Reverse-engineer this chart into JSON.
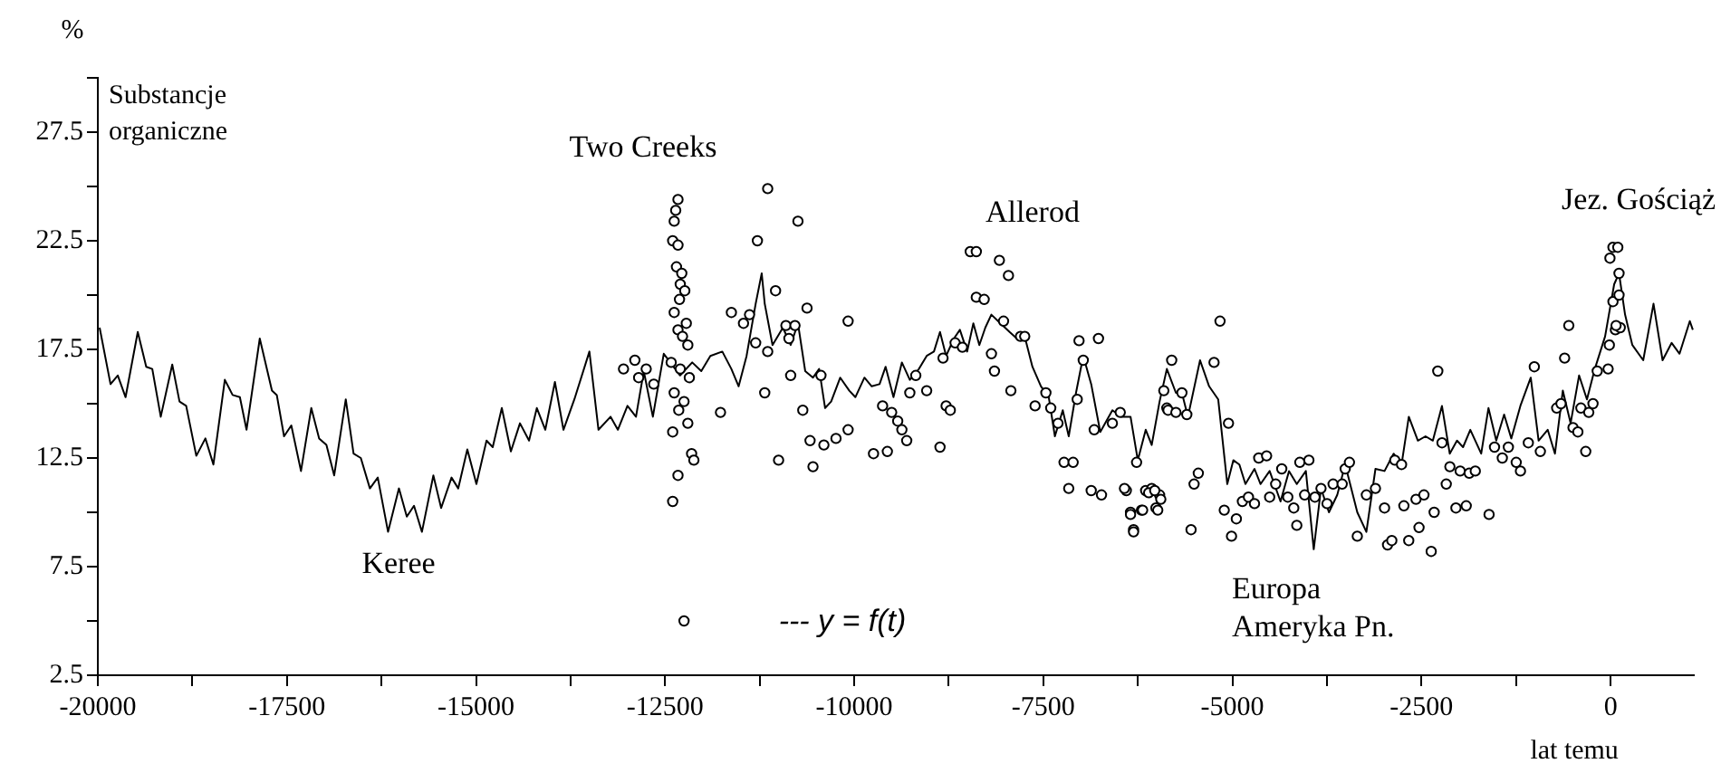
{
  "chart_data": {
    "type": "line",
    "title": "Substancje organiczne",
    "ylabel": "%",
    "xlabel": "lat temu",
    "xlim": [
      -20000,
      1100
    ],
    "xticks": [
      -20000,
      {
        "value": -18750,
        "label": null
      },
      -17500,
      {
        "value": -16250,
        "label": null
      },
      -15000,
      {
        "value": -13750,
        "label": null
      },
      -12500,
      {
        "value": -11250,
        "label": null
      },
      -10000,
      {
        "value": -8750,
        "label": null
      },
      -7500,
      {
        "value": -6250,
        "label": null
      },
      -5000,
      {
        "value": -3750,
        "label": null
      },
      -2500,
      {
        "value": -1250,
        "label": null
      },
      0
    ],
    "ylim": [
      2.5,
      30
    ],
    "yticks": [
      2.5,
      {
        "value": 5,
        "label": null
      },
      7.5,
      {
        "value": 10,
        "label": null
      },
      12.5,
      {
        "value": 15,
        "label": null
      },
      17.5,
      {
        "value": 20,
        "label": null
      },
      22.5,
      {
        "value": 25,
        "label": null
      },
      27.5,
      {
        "value": 30,
        "label": null
      }
    ],
    "grid": false,
    "legend": false,
    "annotations": [
      "Two Creeks",
      "Allerod",
      "Keree",
      "Jez. Gościąż",
      "Europa",
      "Ameryka Pn.",
      "--- y = f(t)"
    ],
    "series": [
      {
        "color": "#000000",
        "marker": "none",
        "x": [
          -19976,
          -19832,
          -19736,
          -19633,
          -19472,
          -19360,
          -19280,
          -19168,
          -19016,
          -18920,
          -18832,
          -18698,
          -18578,
          -18472,
          -18321,
          -18218,
          -18122,
          -18034,
          -17859,
          -17698,
          -17634,
          -17538,
          -17442,
          -17314,
          -17178,
          -17074,
          -16978,
          -16875,
          -16722,
          -16619,
          -16523,
          -16403,
          -16299,
          -16163,
          -16019,
          -15915,
          -15820,
          -15715,
          -15564,
          -15461,
          -15324,
          -15235,
          -15115,
          -14995,
          -14861,
          -14779,
          -14659,
          -14539,
          -14419,
          -14299,
          -14196,
          -14084,
          -13957,
          -13844,
          -13700,
          -13501,
          -13381,
          -13221,
          -13125,
          -12998,
          -12885,
          -12782,
          -12662,
          -12518,
          -12302,
          -12142,
          -12022,
          -11902,
          -11744,
          -11624,
          -11528,
          -11423,
          -11303,
          -11223,
          -11183,
          -11080,
          -10943,
          -10840,
          -10744,
          -10648,
          -10545,
          -10464,
          -10385,
          -10305,
          -10185,
          -10065,
          -9985,
          -9865,
          -9769,
          -9665,
          -9585,
          -9481,
          -9370,
          -9265,
          -9145,
          -9042,
          -8946,
          -8866,
          -8785,
          -8682,
          -8603,
          -8507,
          -8425,
          -8346,
          -8267,
          -8187,
          -8067,
          -7946,
          -7850,
          -7747,
          -7644,
          -7531,
          -7428,
          -7347,
          -7243,
          -7164,
          -7068,
          -6972,
          -6867,
          -6747,
          -6587,
          -6467,
          -6347,
          -6251,
          -6146,
          -6067,
          -5963,
          -5867,
          -5747,
          -5668,
          -5588,
          -5428,
          -5308,
          -5188,
          -5068,
          -4988,
          -4908,
          -4828,
          -4708,
          -4628,
          -4508,
          -4364,
          -4252,
          -4149,
          -4029,
          -3925,
          -3829,
          -3724,
          -3614,
          -3509,
          -3349,
          -3229,
          -3109,
          -2989,
          -2869,
          -2764,
          -2668,
          -2548,
          -2447,
          -2350,
          -2230,
          -2127,
          -2031,
          -1951,
          -1855,
          -1711,
          -1615,
          -1512,
          -1408,
          -1313,
          -1193,
          -1056,
          -952,
          -832,
          -736,
          -632,
          -529,
          -417,
          -313,
          -209,
          -73,
          47,
          111,
          191,
          287,
          431,
          567,
          687,
          807,
          911,
          1047,
          1087
        ],
        "values": [
          18.5,
          15.9,
          16.3,
          15.3,
          18.3,
          16.7,
          16.6,
          14.4,
          16.8,
          15.1,
          14.9,
          12.6,
          13.4,
          12.2,
          16.1,
          15.4,
          15.3,
          13.8,
          18.0,
          15.6,
          15.4,
          13.5,
          14.0,
          11.9,
          14.8,
          13.4,
          13.1,
          11.7,
          15.2,
          12.7,
          12.5,
          11.1,
          11.6,
          9.1,
          11.1,
          9.8,
          10.3,
          9.1,
          11.7,
          10.2,
          11.6,
          11.1,
          12.9,
          11.3,
          13.3,
          13.0,
          14.8,
          12.8,
          14.1,
          13.3,
          14.8,
          13.8,
          16.0,
          13.8,
          15.2,
          17.4,
          13.8,
          14.4,
          13.8,
          14.9,
          14.4,
          16.5,
          14.4,
          17.3,
          16.3,
          16.9,
          16.5,
          17.2,
          17.4,
          16.6,
          15.8,
          17.2,
          19.6,
          21.0,
          19.6,
          17.7,
          18.5,
          17.7,
          18.7,
          16.5,
          16.2,
          16.6,
          14.8,
          15.1,
          16.2,
          15.6,
          15.3,
          16.2,
          15.8,
          15.9,
          16.7,
          15.3,
          16.9,
          16.1,
          16.6,
          17.2,
          17.4,
          18.3,
          17.2,
          18.0,
          18.4,
          17.4,
          18.7,
          17.7,
          18.5,
          19.1,
          18.7,
          18.3,
          18.0,
          18.1,
          16.7,
          15.8,
          15.3,
          13.5,
          14.7,
          13.5,
          15.5,
          17.2,
          15.9,
          13.7,
          14.7,
          14.4,
          14.4,
          12.4,
          13.8,
          13.1,
          15.1,
          16.6,
          15.5,
          15.5,
          14.4,
          17.0,
          15.8,
          15.2,
          11.3,
          12.4,
          12.2,
          11.3,
          12.0,
          11.3,
          11.9,
          10.5,
          11.9,
          11.3,
          11.9,
          8.3,
          11.1,
          10.0,
          10.8,
          12.2,
          10.0,
          9.1,
          12.0,
          11.9,
          12.7,
          12.2,
          14.4,
          13.3,
          13.5,
          13.3,
          14.9,
          12.7,
          13.3,
          13.0,
          13.8,
          12.7,
          14.8,
          13.3,
          14.5,
          13.4,
          14.9,
          16.2,
          13.3,
          13.8,
          12.7,
          15.6,
          14.1,
          16.3,
          15.2,
          16.6,
          18.1,
          20.5,
          21.0,
          19.1,
          17.7,
          17.0,
          19.6,
          17.0,
          17.8,
          17.3,
          18.8,
          18.4
        ]
      },
      {
        "type": "scatter",
        "color": "#000000",
        "marker": "circle",
        "x": [
          -12330,
          -12360,
          -12380,
          -12400,
          -12330,
          -12350,
          -12280,
          -12300,
          -12240,
          -12310,
          -12380,
          -12220,
          -12330,
          -12270,
          -12200,
          -12420,
          -12300,
          -12180,
          -12380,
          -12250,
          -12320,
          -12200,
          -12400,
          -12150,
          -12120,
          -12330,
          -12400,
          -12250,
          -13050,
          -12900,
          -12750,
          -12650,
          -12850,
          -11144,
          -10744,
          -11280,
          -11040,
          -11624,
          -11464,
          -11384,
          -10624,
          -10081,
          -10903,
          -10783,
          -10863,
          -11144,
          -11303,
          -11183,
          -10840,
          -10440,
          -11768,
          -10680,
          -10584,
          -10401,
          -10241,
          -10081,
          -11000,
          -10545,
          -9745,
          -9562,
          -9625,
          -9505,
          -9425,
          -9370,
          -9306,
          -9265,
          -9042,
          -8866,
          -8785,
          -8730,
          -8666,
          -8570,
          -9186,
          -8826,
          -8466,
          -8386,
          -8081,
          -7961,
          -8386,
          -8282,
          -8026,
          -8186,
          -8146,
          -7802,
          -7746,
          -7929,
          -7609,
          -7466,
          -7402,
          -7306,
          -7226,
          -7106,
          -7164,
          -6867,
          -6731,
          -7028,
          -6771,
          -7052,
          -6972,
          -6827,
          -6587,
          -6483,
          -6403,
          -6267,
          -6147,
          -6067,
          -5963,
          -6347,
          -6203,
          -6307,
          -6011,
          -5803,
          -5867,
          -6427,
          -6347,
          -6307,
          -6187,
          -6107,
          -6027,
          -5987,
          -5947,
          -5907,
          -5851,
          -5747,
          -5668,
          -5603,
          -5547,
          -5507,
          -5451,
          -5243,
          -5164,
          -5052,
          -5108,
          -5012,
          -4948,
          -4868,
          -4788,
          -4708,
          -4652,
          -4548,
          -4508,
          -4428,
          -4348,
          -4268,
          -4189,
          -4149,
          -4109,
          -3989,
          -4045,
          -3909,
          -3829,
          -3749,
          -3669,
          -3549,
          -3509,
          -3453,
          -3349,
          -3229,
          -3109,
          -2989,
          -2949,
          -2893,
          -2853,
          -2764,
          -2733,
          -2669,
          -2573,
          -2533,
          -2468,
          -2372,
          -2333,
          -2285,
          -2229,
          -2173,
          -2125,
          -2045,
          -1989,
          -1909,
          -1869,
          -1789,
          -1607,
          -1535,
          -1432,
          -1352,
          -1248,
          -1192,
          -1088,
          -1009,
          -929,
          -713,
          -656,
          -608,
          -553,
          -497,
          -433,
          -393,
          -329,
          -289,
          -233,
          -177,
          -33,
          -17,
          31,
          63,
          111,
          -9,
          31,
          95,
          111,
          127,
          72
        ],
        "values": [
          24.4,
          23.9,
          23.4,
          22.5,
          22.3,
          21.3,
          21.0,
          20.5,
          20.2,
          19.8,
          19.2,
          18.7,
          18.4,
          18.1,
          17.7,
          16.9,
          16.6,
          16.2,
          15.5,
          15.1,
          14.7,
          14.1,
          13.7,
          12.7,
          12.4,
          11.7,
          10.5,
          5.0,
          16.6,
          17.0,
          16.6,
          15.9,
          16.2,
          24.9,
          23.4,
          22.5,
          20.2,
          19.2,
          18.7,
          19.1,
          19.4,
          18.8,
          18.6,
          18.6,
          18.0,
          17.4,
          17.8,
          15.5,
          16.3,
          16.3,
          14.6,
          14.7,
          13.3,
          13.1,
          13.4,
          13.8,
          12.4,
          12.1,
          12.7,
          12.8,
          14.9,
          14.6,
          14.2,
          13.8,
          13.3,
          15.5,
          15.6,
          13.0,
          14.9,
          14.7,
          17.8,
          17.6,
          16.3,
          17.1,
          22.0,
          22.0,
          21.6,
          20.9,
          19.9,
          19.8,
          18.8,
          17.3,
          16.5,
          18.1,
          18.1,
          15.6,
          14.9,
          15.5,
          14.8,
          14.1,
          12.3,
          12.3,
          11.1,
          11.0,
          10.8,
          17.9,
          18.0,
          15.2,
          17.0,
          13.8,
          14.1,
          14.6,
          11.0,
          12.3,
          11.0,
          11.1,
          10.8,
          10.0,
          10.1,
          9.2,
          10.2,
          17.0,
          14.8,
          11.1,
          9.9,
          9.1,
          10.1,
          10.9,
          11.0,
          10.1,
          10.6,
          15.6,
          14.7,
          14.6,
          15.5,
          14.5,
          9.2,
          11.3,
          11.8,
          16.9,
          18.8,
          14.1,
          10.1,
          8.9,
          9.7,
          10.5,
          10.7,
          10.4,
          12.5,
          12.6,
          10.7,
          11.3,
          12.0,
          10.7,
          10.2,
          9.4,
          12.3,
          12.4,
          10.8,
          10.7,
          11.1,
          10.4,
          11.3,
          11.3,
          12.0,
          12.3,
          8.9,
          10.8,
          11.1,
          10.2,
          8.5,
          8.7,
          12.4,
          12.2,
          10.3,
          8.7,
          10.6,
          9.3,
          10.8,
          8.2,
          10.0,
          16.5,
          13.2,
          11.3,
          12.1,
          10.2,
          11.9,
          10.3,
          11.8,
          11.9,
          9.9,
          13.0,
          12.5,
          13.0,
          12.3,
          11.9,
          13.2,
          16.7,
          12.8,
          14.8,
          15.0,
          17.1,
          18.6,
          13.9,
          13.7,
          14.8,
          12.8,
          14.6,
          15.0,
          16.5,
          16.6,
          17.7,
          19.7,
          18.4,
          20.0,
          21.7,
          22.2,
          22.2,
          21.0,
          18.5,
          18.6
        ]
      }
    ]
  }
}
